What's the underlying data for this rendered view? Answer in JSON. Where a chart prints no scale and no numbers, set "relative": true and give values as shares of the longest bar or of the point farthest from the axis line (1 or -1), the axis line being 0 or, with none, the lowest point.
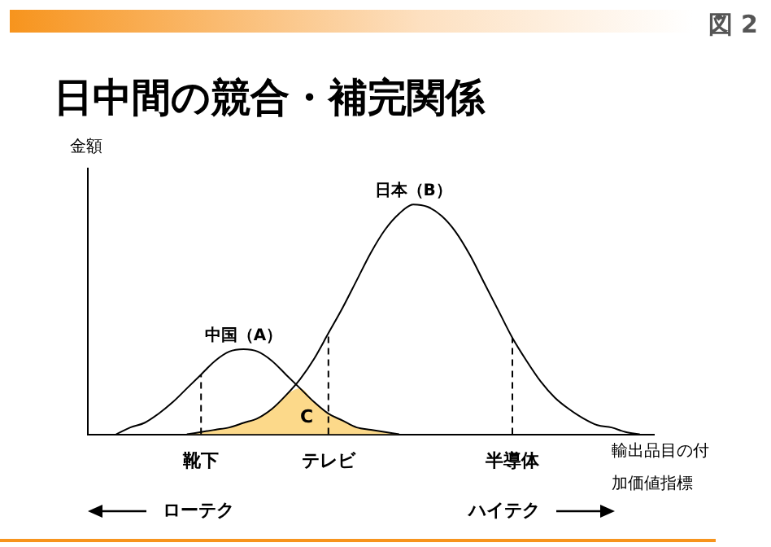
{
  "chart_data": {
    "type": "line",
    "title": "日中間の競合・補完関係",
    "ylabel": "金額",
    "xlabel": "輸出品目の付加価値指標",
    "relative": true,
    "legend": false,
    "grid": false,
    "marker": "none",
    "categories": [
      null,
      null,
      null,
      null,
      null,
      null,
      null,
      null,
      "靴下",
      null,
      null,
      null,
      null,
      null,
      null,
      null,
      null,
      "テレビ",
      null,
      null,
      null,
      null,
      null,
      null,
      null,
      null,
      null,
      null,
      null,
      null,
      "半導体",
      null,
      null,
      null,
      null,
      null,
      null,
      null,
      null,
      null,
      null
    ],
    "series": [
      {
        "name": "中国（A）",
        "color": "#000000",
        "values": [
          null,
          null,
          0,
          0.03,
          0.05,
          0.09,
          0.14,
          0.2,
          0.26,
          0.32,
          0.36,
          0.37,
          0.36,
          0.32,
          0.26,
          0.2,
          0.14,
          0.09,
          0.06,
          0.03,
          0.02,
          0.01,
          0,
          null,
          null,
          null,
          null,
          null,
          null,
          null,
          null,
          null,
          null,
          null,
          null,
          null,
          null,
          null,
          null,
          null,
          null
        ]
      },
      {
        "name": "日本（B）",
        "color": "#000000",
        "values": [
          null,
          null,
          null,
          null,
          null,
          null,
          null,
          0,
          0.01,
          0.02,
          0.03,
          0.05,
          0.07,
          0.11,
          0.17,
          0.24,
          0.33,
          0.44,
          0.55,
          0.67,
          0.79,
          0.89,
          0.96,
          1.0,
          0.99,
          0.95,
          0.88,
          0.78,
          0.66,
          0.54,
          0.42,
          0.32,
          0.23,
          0.16,
          0.11,
          0.07,
          0.04,
          0.03,
          0.01,
          0,
          null
        ]
      },
      {
        "name": "C",
        "type": "area",
        "color": "#fcd98a",
        "values": [
          null,
          null,
          null,
          null,
          null,
          null,
          null,
          0,
          0.01,
          0.02,
          0.03,
          0.05,
          0.07,
          0.11,
          0.17,
          0.2,
          0.14,
          0.09,
          0.06,
          0.03,
          0.02,
          0.01,
          0,
          null,
          null,
          null,
          null,
          null,
          null,
          null,
          null,
          null,
          null,
          null,
          null,
          null,
          null,
          null,
          null,
          null,
          null
        ]
      }
    ],
    "ref_lines": [
      {
        "axis": "x",
        "value": "靴下",
        "line_style": "dashed"
      },
      {
        "axis": "x",
        "value": "テレビ",
        "line_style": "dashed"
      },
      {
        "axis": "x",
        "value": "半導体",
        "line_style": "dashed"
      }
    ],
    "annotations": [
      "図 2",
      "ローテク",
      "ハイテク"
    ]
  }
}
